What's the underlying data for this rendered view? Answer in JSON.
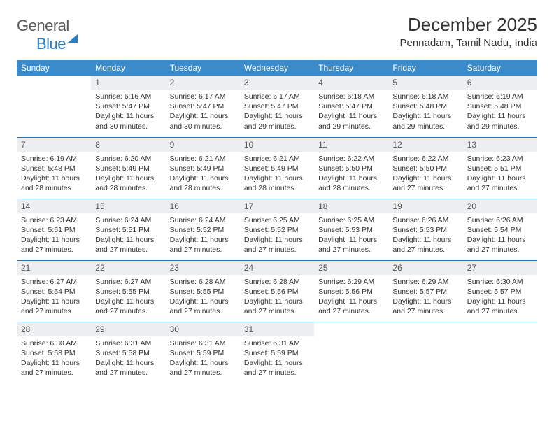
{
  "brand": {
    "name_a": "General",
    "name_b": "Blue"
  },
  "title": "December 2025",
  "location": "Pennadam, Tamil Nadu, India",
  "style": {
    "header_bg": "#3b8bca",
    "header_text": "#ffffff",
    "row_border": "#2e6fa5",
    "daynum_bg": "#eceeef",
    "page_bg": "#ffffff",
    "body_text": "#333333",
    "brand_gray": "#5a5a5a",
    "brand_blue": "#2e7cc0",
    "title_fontsize": 26,
    "location_fontsize": 15,
    "dayhead_fontsize": 12,
    "cell_fontsize": 10.5
  },
  "weekdays": [
    "Sunday",
    "Monday",
    "Tuesday",
    "Wednesday",
    "Thursday",
    "Friday",
    "Saturday"
  ],
  "start_offset": 1,
  "days": [
    {
      "n": "1",
      "sr": "6:16 AM",
      "ss": "5:47 PM",
      "dl": "11 hours and 30 minutes."
    },
    {
      "n": "2",
      "sr": "6:17 AM",
      "ss": "5:47 PM",
      "dl": "11 hours and 30 minutes."
    },
    {
      "n": "3",
      "sr": "6:17 AM",
      "ss": "5:47 PM",
      "dl": "11 hours and 29 minutes."
    },
    {
      "n": "4",
      "sr": "6:18 AM",
      "ss": "5:47 PM",
      "dl": "11 hours and 29 minutes."
    },
    {
      "n": "5",
      "sr": "6:18 AM",
      "ss": "5:48 PM",
      "dl": "11 hours and 29 minutes."
    },
    {
      "n": "6",
      "sr": "6:19 AM",
      "ss": "5:48 PM",
      "dl": "11 hours and 29 minutes."
    },
    {
      "n": "7",
      "sr": "6:19 AM",
      "ss": "5:48 PM",
      "dl": "11 hours and 28 minutes."
    },
    {
      "n": "8",
      "sr": "6:20 AM",
      "ss": "5:49 PM",
      "dl": "11 hours and 28 minutes."
    },
    {
      "n": "9",
      "sr": "6:21 AM",
      "ss": "5:49 PM",
      "dl": "11 hours and 28 minutes."
    },
    {
      "n": "10",
      "sr": "6:21 AM",
      "ss": "5:49 PM",
      "dl": "11 hours and 28 minutes."
    },
    {
      "n": "11",
      "sr": "6:22 AM",
      "ss": "5:50 PM",
      "dl": "11 hours and 28 minutes."
    },
    {
      "n": "12",
      "sr": "6:22 AM",
      "ss": "5:50 PM",
      "dl": "11 hours and 27 minutes."
    },
    {
      "n": "13",
      "sr": "6:23 AM",
      "ss": "5:51 PM",
      "dl": "11 hours and 27 minutes."
    },
    {
      "n": "14",
      "sr": "6:23 AM",
      "ss": "5:51 PM",
      "dl": "11 hours and 27 minutes."
    },
    {
      "n": "15",
      "sr": "6:24 AM",
      "ss": "5:51 PM",
      "dl": "11 hours and 27 minutes."
    },
    {
      "n": "16",
      "sr": "6:24 AM",
      "ss": "5:52 PM",
      "dl": "11 hours and 27 minutes."
    },
    {
      "n": "17",
      "sr": "6:25 AM",
      "ss": "5:52 PM",
      "dl": "11 hours and 27 minutes."
    },
    {
      "n": "18",
      "sr": "6:25 AM",
      "ss": "5:53 PM",
      "dl": "11 hours and 27 minutes."
    },
    {
      "n": "19",
      "sr": "6:26 AM",
      "ss": "5:53 PM",
      "dl": "11 hours and 27 minutes."
    },
    {
      "n": "20",
      "sr": "6:26 AM",
      "ss": "5:54 PM",
      "dl": "11 hours and 27 minutes."
    },
    {
      "n": "21",
      "sr": "6:27 AM",
      "ss": "5:54 PM",
      "dl": "11 hours and 27 minutes."
    },
    {
      "n": "22",
      "sr": "6:27 AM",
      "ss": "5:55 PM",
      "dl": "11 hours and 27 minutes."
    },
    {
      "n": "23",
      "sr": "6:28 AM",
      "ss": "5:55 PM",
      "dl": "11 hours and 27 minutes."
    },
    {
      "n": "24",
      "sr": "6:28 AM",
      "ss": "5:56 PM",
      "dl": "11 hours and 27 minutes."
    },
    {
      "n": "25",
      "sr": "6:29 AM",
      "ss": "5:56 PM",
      "dl": "11 hours and 27 minutes."
    },
    {
      "n": "26",
      "sr": "6:29 AM",
      "ss": "5:57 PM",
      "dl": "11 hours and 27 minutes."
    },
    {
      "n": "27",
      "sr": "6:30 AM",
      "ss": "5:57 PM",
      "dl": "11 hours and 27 minutes."
    },
    {
      "n": "28",
      "sr": "6:30 AM",
      "ss": "5:58 PM",
      "dl": "11 hours and 27 minutes."
    },
    {
      "n": "29",
      "sr": "6:31 AM",
      "ss": "5:58 PM",
      "dl": "11 hours and 27 minutes."
    },
    {
      "n": "30",
      "sr": "6:31 AM",
      "ss": "5:59 PM",
      "dl": "11 hours and 27 minutes."
    },
    {
      "n": "31",
      "sr": "6:31 AM",
      "ss": "5:59 PM",
      "dl": "11 hours and 27 minutes."
    }
  ],
  "labels": {
    "sunrise": "Sunrise:",
    "sunset": "Sunset:",
    "daylight": "Daylight:"
  }
}
